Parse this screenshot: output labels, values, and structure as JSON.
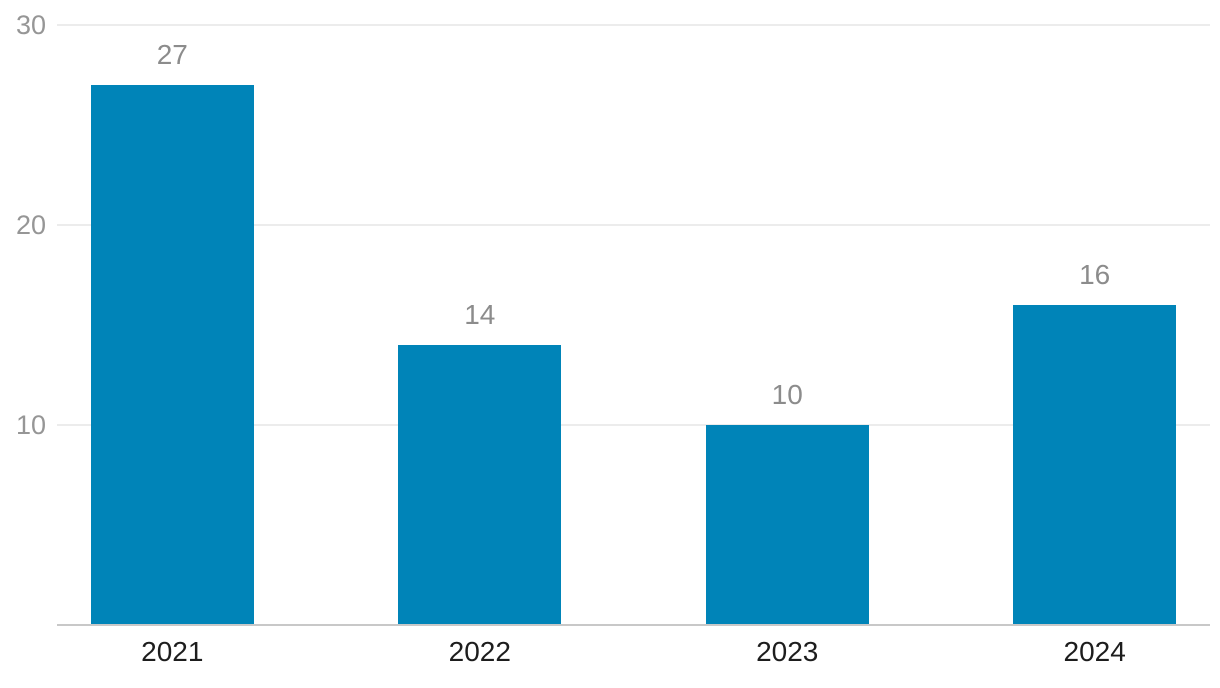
{
  "chart_data": {
    "type": "bar",
    "title": "",
    "xlabel": "",
    "ylabel": "",
    "categories": [
      "2021",
      "2022",
      "2023",
      "2024"
    ],
    "values": [
      27,
      14,
      10,
      16
    ],
    "ylim": [
      0,
      30
    ],
    "yticks": [
      10,
      20,
      30
    ],
    "grid": true,
    "legend": false,
    "colors": {
      "bar": "#0084b8",
      "value_label": "#8c8c8c",
      "y_tick_label": "#969696",
      "category_label": "#1d1d1d",
      "gridline": "#ececec",
      "axis_line": "#c8c8c8",
      "background": "#ffffff"
    }
  }
}
